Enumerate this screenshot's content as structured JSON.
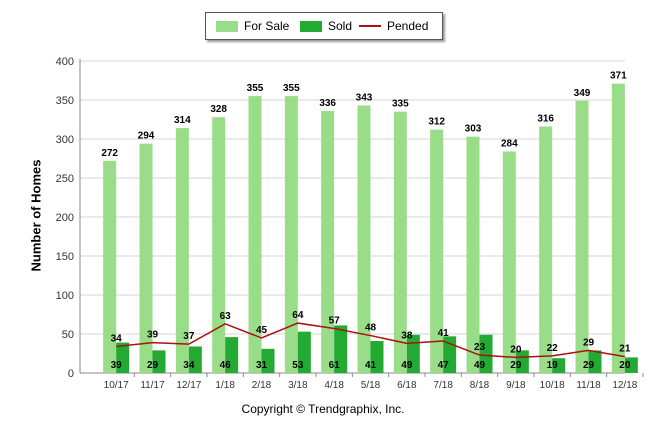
{
  "chart_data": {
    "type": "bar",
    "categories": [
      "10/17",
      "11/17",
      "12/17",
      "1/18",
      "2/18",
      "3/18",
      "4/18",
      "5/18",
      "6/18",
      "7/18",
      "8/18",
      "9/18",
      "10/18",
      "11/18",
      "12/18"
    ],
    "series": [
      {
        "name": "For Sale",
        "type": "bar",
        "color": "#99dd88",
        "values": [
          272,
          294,
          314,
          328,
          355,
          355,
          336,
          343,
          335,
          312,
          303,
          284,
          316,
          349,
          371
        ]
      },
      {
        "name": "Sold",
        "type": "bar",
        "color": "#22aa33",
        "values": [
          39,
          29,
          34,
          46,
          31,
          53,
          61,
          41,
          49,
          47,
          49,
          29,
          19,
          29,
          20
        ]
      },
      {
        "name": "Pended",
        "type": "line",
        "color": "#aa1111",
        "values": [
          34,
          39,
          37,
          63,
          45,
          64,
          57,
          48,
          38,
          41,
          23,
          20,
          22,
          29,
          21
        ]
      }
    ],
    "title": "",
    "xlabel": "",
    "ylabel": "Number of Homes",
    "ylim": [
      0,
      400
    ],
    "yticks": [
      0,
      50,
      100,
      150,
      200,
      250,
      300,
      350,
      400
    ],
    "grid": true,
    "legend_position": "top-center"
  },
  "legend": {
    "for_sale": "For Sale",
    "sold": "Sold",
    "pended": "Pended"
  },
  "copyright": "Copyright © Trendgraphix, Inc."
}
